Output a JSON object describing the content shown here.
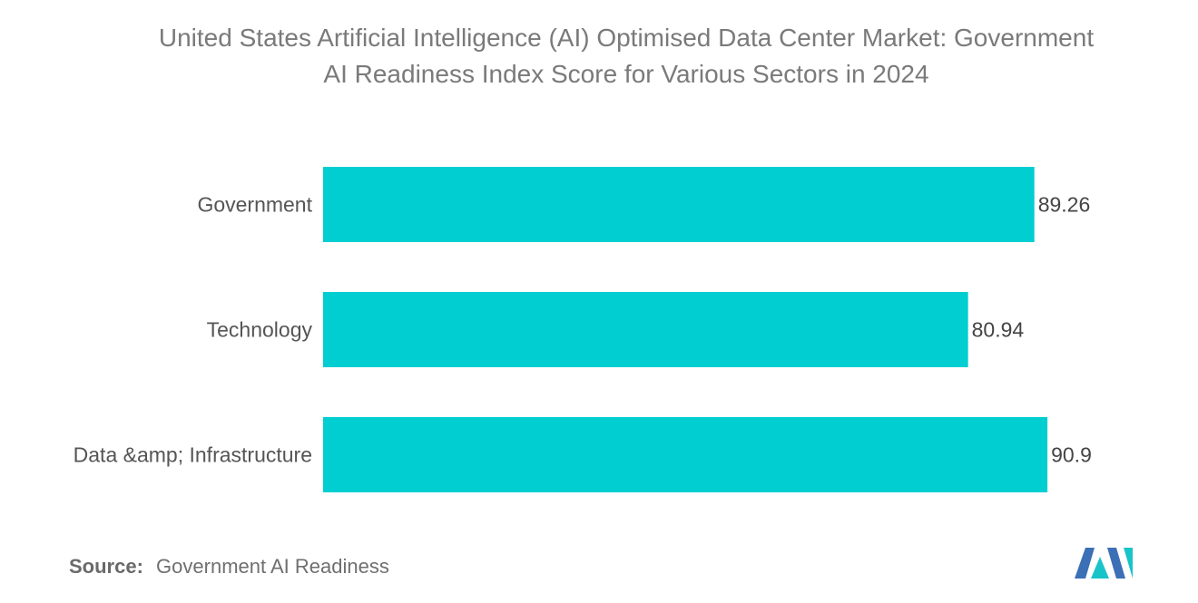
{
  "chart_data": {
    "type": "bar",
    "orientation": "horizontal",
    "title_lines": [
      "United States Artificial Intelligence (AI) Optimised Data Center Market: Government",
      "AI Readiness Index Score for Various Sectors in 2024"
    ],
    "categories": [
      "Government",
      "Technology",
      "Data &amp; Infrastructure"
    ],
    "values": [
      89.26,
      80.94,
      90.9
    ],
    "value_labels": [
      "89.26",
      "80.94",
      "90.9"
    ],
    "xlim": [
      0,
      100
    ],
    "grid": false,
    "legend": "none",
    "bar_color": "#00CED1"
  },
  "source": {
    "label": "Source:",
    "text": "Government AI Readiness"
  },
  "logo": {
    "icon": "mordor-intelligence-logo-icon",
    "color_primary": "#3B6FB6",
    "color_secondary": "#19C4C9"
  }
}
